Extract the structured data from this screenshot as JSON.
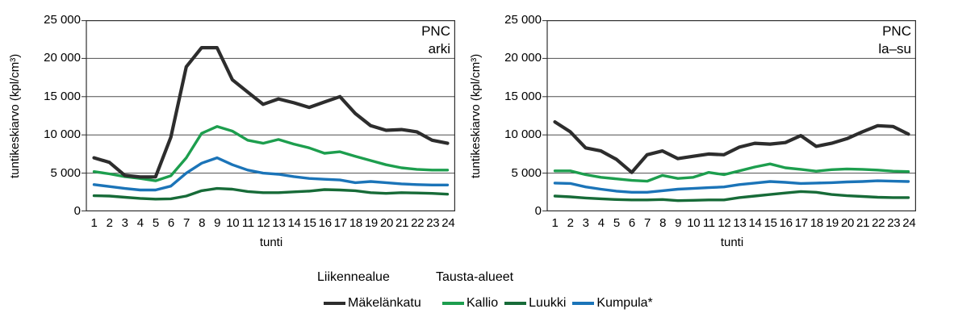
{
  "axes": {
    "y_tick_labels": [
      "25 000",
      "20 000",
      "15 000",
      "10 000",
      "5 000",
      "0"
    ],
    "grid": "horizontal",
    "y_step": 5000
  },
  "legend": {
    "groups": [
      {
        "label": "Liikennealue",
        "items": [
          {
            "label": "Mäkelänkatu",
            "color": "#2d2d2d"
          }
        ]
      },
      {
        "label": "Tausta-alueet",
        "items": [
          {
            "label": "Kallio",
            "color": "#1d9e4e"
          },
          {
            "label": "Luukki",
            "color": "#176b38"
          },
          {
            "label": "Kumpula*",
            "color": "#1b74b8"
          }
        ]
      }
    ]
  },
  "chart_data": [
    {
      "type": "line",
      "title_lines": [
        "PNC",
        "arki"
      ],
      "ylabel": "tuntikeskiarvo (kpl/cm³)",
      "xlabel": "tunti",
      "ylim": [
        0,
        25000
      ],
      "x": [
        1,
        2,
        3,
        4,
        5,
        6,
        7,
        8,
        9,
        10,
        11,
        12,
        13,
        14,
        15,
        16,
        17,
        18,
        19,
        20,
        21,
        22,
        23,
        24
      ],
      "series": [
        {
          "name": "Mäkelänkatu",
          "color": "#2d2d2d",
          "width": 4.2,
          "values": [
            7000,
            6400,
            4700,
            4500,
            4500,
            9700,
            18900,
            21400,
            21400,
            17200,
            15600,
            14000,
            14700,
            14200,
            13600,
            14300,
            15000,
            12800,
            11200,
            10600,
            10700,
            10400,
            9300,
            8900
          ]
        },
        {
          "name": "Kallio",
          "color": "#1d9e4e",
          "width": 3.4,
          "values": [
            5200,
            4900,
            4550,
            4300,
            4000,
            4650,
            7000,
            10200,
            11100,
            10500,
            9300,
            8900,
            9400,
            8800,
            8300,
            7600,
            7800,
            7200,
            6650,
            6100,
            5700,
            5500,
            5400,
            5400
          ]
        },
        {
          "name": "Luukki",
          "color": "#176b38",
          "width": 3.4,
          "values": [
            2050,
            2000,
            1850,
            1700,
            1600,
            1650,
            2000,
            2700,
            3000,
            2900,
            2600,
            2450,
            2450,
            2550,
            2650,
            2850,
            2800,
            2700,
            2450,
            2350,
            2450,
            2400,
            2350,
            2250
          ]
        },
        {
          "name": "Kumpula*",
          "color": "#1b74b8",
          "width": 3.4,
          "values": [
            3500,
            3250,
            3000,
            2800,
            2800,
            3300,
            5000,
            6300,
            7000,
            6100,
            5400,
            5000,
            4850,
            4550,
            4300,
            4200,
            4100,
            3750,
            3900,
            3750,
            3600,
            3500,
            3450,
            3450
          ]
        }
      ]
    },
    {
      "type": "line",
      "title_lines": [
        "PNC",
        "la–su"
      ],
      "ylabel": "tuntikeskiarvo (kpl/cm³)",
      "xlabel": "tunti",
      "ylim": [
        0,
        25000
      ],
      "x": [
        1,
        2,
        3,
        4,
        5,
        6,
        7,
        8,
        9,
        10,
        11,
        12,
        13,
        14,
        15,
        16,
        17,
        18,
        19,
        20,
        21,
        22,
        23,
        24
      ],
      "series": [
        {
          "name": "Mäkelänkatu",
          "color": "#2d2d2d",
          "width": 4.2,
          "values": [
            11700,
            10400,
            8300,
            7900,
            6800,
            5100,
            7400,
            7900,
            6900,
            7200,
            7500,
            7400,
            8400,
            8900,
            8800,
            9000,
            9900,
            8500,
            8900,
            9500,
            10400,
            11200,
            11100,
            10100
          ]
        },
        {
          "name": "Kallio",
          "color": "#1d9e4e",
          "width": 3.4,
          "values": [
            5300,
            5300,
            4800,
            4450,
            4250,
            4050,
            3950,
            4700,
            4300,
            4450,
            5100,
            4800,
            5300,
            5800,
            6200,
            5700,
            5500,
            5250,
            5450,
            5550,
            5500,
            5400,
            5250,
            5200
          ]
        },
        {
          "name": "Luukki",
          "color": "#176b38",
          "width": 3.4,
          "values": [
            2000,
            1900,
            1750,
            1650,
            1550,
            1500,
            1500,
            1550,
            1400,
            1450,
            1500,
            1500,
            1800,
            2000,
            2200,
            2400,
            2600,
            2500,
            2200,
            2050,
            1950,
            1850,
            1800,
            1800
          ]
        },
        {
          "name": "Kumpula*",
          "color": "#1b74b8",
          "width": 3.4,
          "values": [
            3700,
            3650,
            3200,
            2900,
            2650,
            2500,
            2500,
            2700,
            2900,
            3000,
            3100,
            3200,
            3500,
            3700,
            3900,
            3800,
            3650,
            3700,
            3750,
            3850,
            3900,
            4000,
            3950,
            3900
          ]
        }
      ]
    }
  ]
}
